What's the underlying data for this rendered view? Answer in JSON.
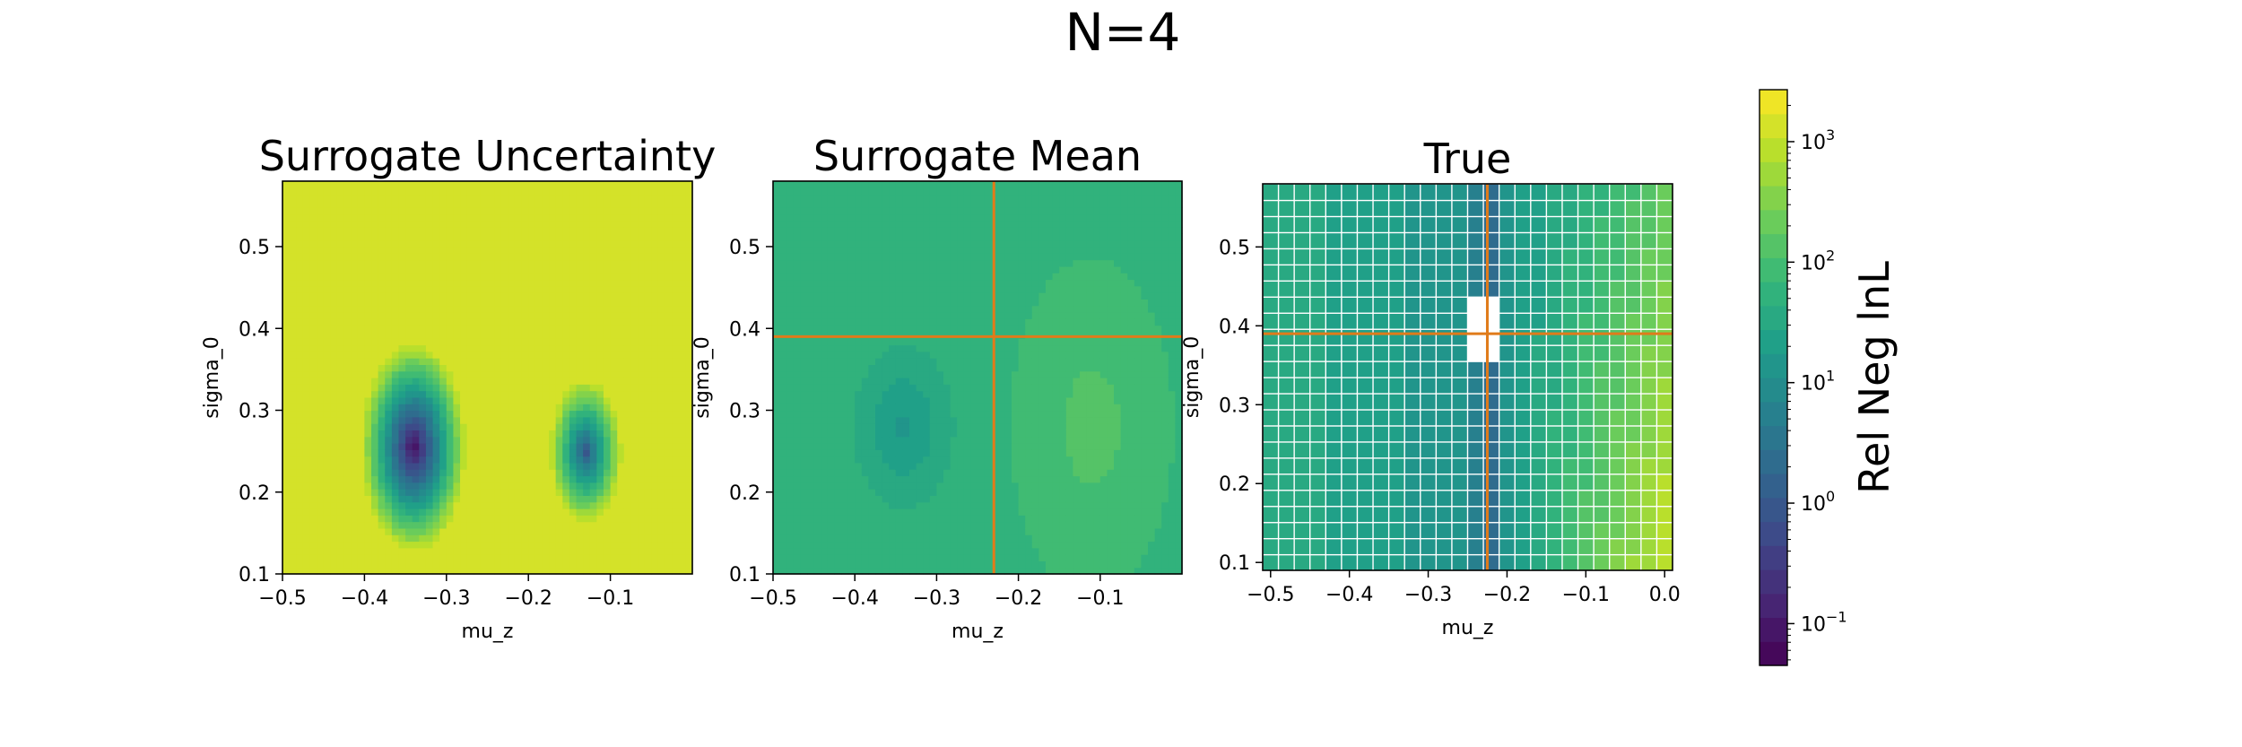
{
  "figure": {
    "suptitle": "N=4"
  },
  "colorbar": {
    "label": "Rel Neg lnL",
    "ticks": [
      {
        "value": 0.1,
        "label": "10",
        "exp": "−1"
      },
      {
        "value": 1,
        "label": "10",
        "exp": "0"
      },
      {
        "value": 10,
        "label": "10",
        "exp": "1"
      },
      {
        "value": 100,
        "label": "10",
        "exp": "2"
      },
      {
        "value": 1000,
        "label": "10",
        "exp": "3"
      }
    ],
    "range": [
      0.045,
      2700
    ],
    "levels": 24,
    "colormap": "viridis",
    "scale": "log"
  },
  "chart_data": [
    {
      "type": "heatmap",
      "title": "Surrogate Uncertainty",
      "xlabel": "mu_z",
      "ylabel": "sigma_0",
      "xlim": [
        -0.5,
        0.0
      ],
      "ylim": [
        0.1,
        0.58
      ],
      "xticks": [
        -0.5,
        -0.4,
        -0.3,
        -0.2,
        -0.1
      ],
      "xtick_labels": [
        "−0.5",
        "−0.4",
        "−0.3",
        "−0.2",
        "−0.1"
      ],
      "yticks": [
        0.1,
        0.2,
        0.3,
        0.4,
        0.5
      ],
      "ytick_labels": [
        "0.1",
        "0.2",
        "0.3",
        "0.4",
        "0.5"
      ],
      "z_scale": "log",
      "background_value": 1500,
      "features": [
        {
          "kind": "minimum",
          "x": -0.34,
          "y": 0.255,
          "value": 0.05
        },
        {
          "kind": "minimum",
          "x": -0.13,
          "y": 0.25,
          "value": 0.8
        }
      ],
      "crosshair": null
    },
    {
      "type": "heatmap",
      "title": "Surrogate Mean",
      "xlabel": "mu_z",
      "ylabel": "sigma_0",
      "xlim": [
        -0.5,
        0.0
      ],
      "ylim": [
        0.1,
        0.58
      ],
      "xticks": [
        -0.5,
        -0.4,
        -0.3,
        -0.2,
        -0.1
      ],
      "xtick_labels": [
        "−0.5",
        "−0.4",
        "−0.3",
        "−0.2",
        "−0.1"
      ],
      "yticks": [
        0.1,
        0.2,
        0.3,
        0.4,
        0.5
      ],
      "ytick_labels": [
        "0.1",
        "0.2",
        "0.3",
        "0.4",
        "0.5"
      ],
      "z_scale": "log",
      "background_value": 60,
      "features": [
        {
          "kind": "minimum",
          "x": -0.34,
          "y": 0.28,
          "value": 15
        },
        {
          "kind": "maximum",
          "x": -0.11,
          "y": 0.28,
          "value": 150
        }
      ],
      "crosshair": {
        "x": -0.23,
        "y": 0.39,
        "color": "#e07b1a"
      }
    },
    {
      "type": "heatmap",
      "title": "True",
      "xlabel": "mu_z",
      "ylabel": "sigma_0",
      "xlim": [
        -0.51,
        0.01
      ],
      "ylim": [
        0.09,
        0.58
      ],
      "xticks": [
        -0.5,
        -0.4,
        -0.3,
        -0.2,
        -0.1,
        0.0
      ],
      "xtick_labels": [
        "−0.5",
        "−0.4",
        "−0.3",
        "−0.2",
        "−0.1",
        "0.0"
      ],
      "yticks": [
        0.1,
        0.2,
        0.3,
        0.4,
        0.5
      ],
      "ytick_labels": [
        "0.1",
        "0.2",
        "0.3",
        "0.4",
        "0.5"
      ],
      "z_scale": "log",
      "grid": true,
      "grid_color": "#ffffff",
      "grid_cells": [
        26,
        24
      ],
      "features": [
        {
          "kind": "minimum",
          "x": -0.225,
          "y": 0.39,
          "value": 0.05
        }
      ],
      "crosshair": {
        "x": -0.225,
        "y": 0.39,
        "color": "#e07b1a"
      }
    }
  ]
}
